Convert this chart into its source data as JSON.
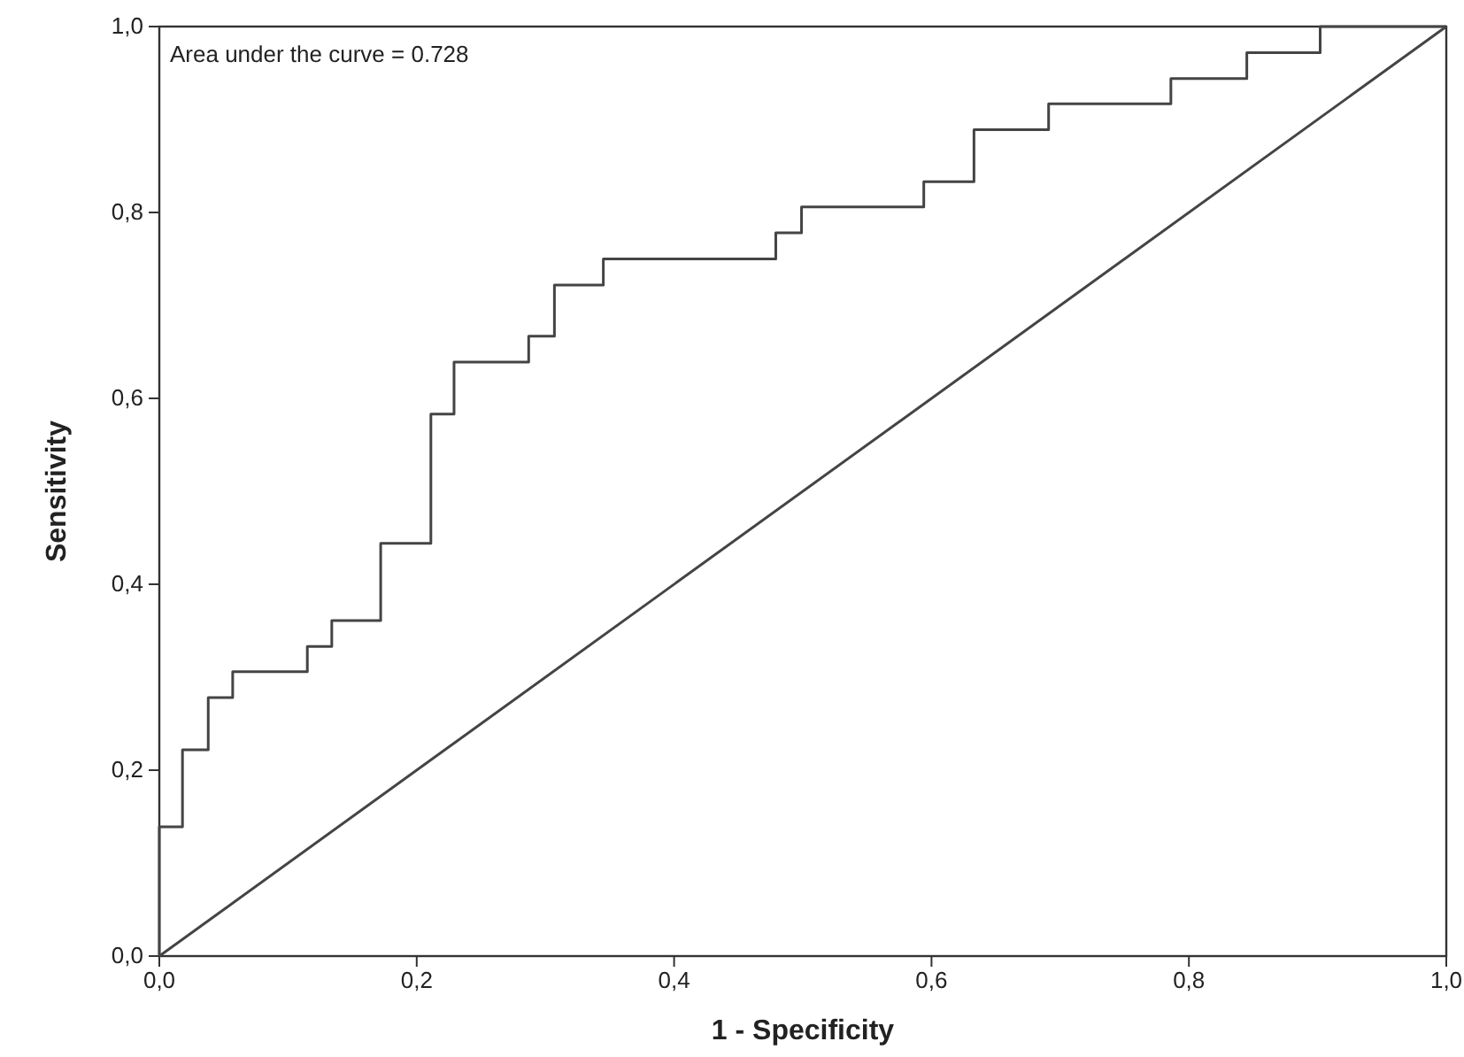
{
  "chart_data": {
    "type": "step",
    "xlabel": "1 - Specificity",
    "ylabel": "Sensitivity",
    "annotations": [
      "Area under the curve = 0.728"
    ],
    "xlim": [
      0,
      1
    ],
    "ylim": [
      0,
      1
    ],
    "xticks": [
      {
        "value": 0,
        "label": "0,0"
      },
      {
        "value": 0.2,
        "label": "0,2"
      },
      {
        "value": 0.4,
        "label": "0,4"
      },
      {
        "value": 0.6,
        "label": "0,6"
      },
      {
        "value": 0.8,
        "label": "0,8"
      },
      {
        "value": 1,
        "label": "1,0"
      }
    ],
    "yticks": [
      {
        "value": 0,
        "label": "0,0"
      },
      {
        "value": 0.2,
        "label": "0,2"
      },
      {
        "value": 0.4,
        "label": "0,4"
      },
      {
        "value": 0.6,
        "label": "0,6"
      },
      {
        "value": 0.8,
        "label": "0,8"
      },
      {
        "value": 1,
        "label": "1,0"
      }
    ],
    "grid": false,
    "series": [
      {
        "color": "#444444",
        "x": [
          0,
          0,
          0.018,
          0.038,
          0.057,
          0.115,
          0.134,
          0.172,
          0.211,
          0.229,
          0.287,
          0.307,
          0.345,
          0.479,
          0.499,
          0.594,
          0.633,
          0.691,
          0.786,
          0.845,
          0.902,
          1
        ],
        "values": [
          0,
          0.139,
          0.222,
          0.278,
          0.306,
          0.333,
          0.361,
          0.444,
          0.583,
          0.639,
          0.667,
          0.722,
          0.75,
          0.778,
          0.806,
          0.833,
          0.889,
          0.917,
          0.944,
          0.972,
          1,
          1
        ]
      },
      {
        "type": "line",
        "color": "#444444",
        "x": [
          0,
          1
        ],
        "values": [
          0,
          1
        ]
      }
    ]
  }
}
